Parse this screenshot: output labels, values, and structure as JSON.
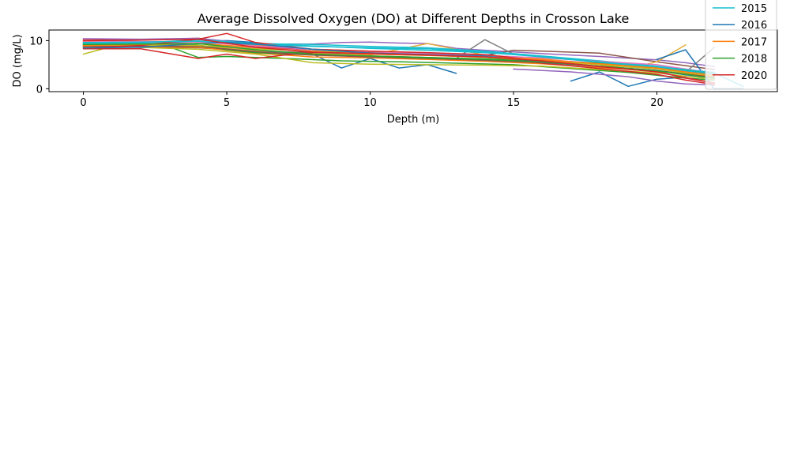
{
  "chart_data": {
    "type": "line",
    "title": "Average Dissolved Oxygen (DO) at Different Depths in Crosson Lake",
    "xlabel": "Depth (m)",
    "ylabel": "DO (mg/L)",
    "xlim": [
      -1.2,
      24.2
    ],
    "ylim": [
      -0.6,
      12.2
    ],
    "xticks": [
      0,
      5,
      10,
      15,
      20
    ],
    "yticks": [
      0,
      10
    ],
    "legend_position": "top-right",
    "series": [
      {
        "name": "",
        "color": "#1f77b4",
        "x": [
          0,
          2,
          4,
          5,
          6,
          7,
          8,
          9,
          10,
          11,
          12,
          13
        ],
        "y": [
          9.1,
          9.2,
          9.8,
          10.0,
          9.6,
          8.5,
          7.2,
          4.3,
          6.3,
          4.3,
          5.0,
          3.2
        ]
      },
      {
        "name": "",
        "color": "#1f77b4",
        "x": [
          17,
          18,
          19,
          20,
          21
        ],
        "y": [
          1.6,
          3.5,
          0.5,
          2.0,
          2.4
        ]
      },
      {
        "name": "",
        "color": "#ff7f0e",
        "x": [
          0,
          2,
          4,
          6,
          8,
          10,
          12,
          14,
          16,
          18,
          20,
          21,
          22
        ],
        "y": [
          9.8,
          10.1,
          10.5,
          9.0,
          8.2,
          7.8,
          7.4,
          7.0,
          6.2,
          5.1,
          4.2,
          3.5,
          2.9
        ]
      },
      {
        "name": "",
        "color": "#2ca02c",
        "x": [
          0,
          2,
          3,
          4,
          5,
          7,
          9,
          11,
          13,
          15,
          17,
          19,
          21,
          22
        ],
        "y": [
          9.3,
          9.0,
          8.7,
          6.5,
          6.7,
          6.3,
          5.8,
          5.6,
          5.3,
          5.0,
          4.2,
          3.4,
          2.2,
          1.8
        ]
      },
      {
        "name": "",
        "color": "#d62728",
        "x": [
          0,
          2,
          4,
          6,
          8,
          10,
          12,
          14,
          16,
          18,
          20,
          21,
          22
        ],
        "y": [
          10.3,
          10.2,
          10.4,
          8.8,
          7.9,
          7.5,
          7.2,
          6.8,
          5.9,
          4.6,
          3.6,
          2.2,
          1.2
        ]
      },
      {
        "name": "",
        "color": "#9467bd",
        "x": [
          0,
          2,
          4,
          6,
          8,
          9,
          10,
          11,
          12,
          13,
          14,
          16,
          18,
          20,
          21,
          22
        ],
        "y": [
          10.4,
          10.3,
          10.5,
          9.3,
          9.3,
          9.6,
          9.7,
          9.5,
          9.4,
          8.4,
          8.0,
          7.3,
          6.7,
          6.0,
          5.4,
          4.6
        ]
      },
      {
        "name": "",
        "color": "#9467bd",
        "x": [
          15,
          17,
          19,
          20,
          21,
          22
        ],
        "y": [
          4.1,
          3.5,
          2.5,
          1.6,
          1.0,
          0.8
        ]
      },
      {
        "name": "",
        "color": "#8c564b",
        "x": [
          0,
          2,
          4,
          6,
          8,
          10,
          12,
          14,
          15,
          16,
          18,
          19,
          20,
          21,
          22
        ],
        "y": [
          8.8,
          8.6,
          8.5,
          7.8,
          7.5,
          7.2,
          7.0,
          6.9,
          8.0,
          7.8,
          7.4,
          6.5,
          5.6,
          4.8,
          4.0
        ]
      },
      {
        "name": "",
        "color": "#e377c2",
        "x": [
          0,
          2,
          4,
          6,
          8,
          10,
          12,
          14,
          16,
          18,
          20,
          21,
          22
        ],
        "y": [
          9.6,
          9.5,
          9.4,
          8.5,
          7.9,
          7.5,
          7.0,
          6.5,
          6.0,
          5.3,
          4.6,
          3.9,
          3.2
        ]
      },
      {
        "name": "",
        "color": "#7f7f7f",
        "x": [
          0,
          2,
          4,
          6,
          8,
          10,
          12,
          13,
          14,
          15,
          17,
          19,
          20,
          21,
          22
        ],
        "y": [
          9.0,
          8.9,
          8.8,
          7.8,
          7.2,
          6.8,
          6.5,
          6.3,
          10.2,
          7.2,
          6.2,
          5.2,
          4.5,
          3.4,
          8.6
        ]
      },
      {
        "name": "",
        "color": "#bcbd22",
        "x": [
          0,
          1,
          3,
          4,
          6,
          8,
          10,
          12,
          14,
          16,
          18,
          20,
          21,
          22
        ],
        "y": [
          7.2,
          8.8,
          8.4,
          8.2,
          7.2,
          5.4,
          5.1,
          5.0,
          4.9,
          4.7,
          4.0,
          3.3,
          2.6,
          2.0
        ]
      },
      {
        "name": "",
        "color": "#e5ae38",
        "x": [
          0,
          2,
          4,
          6,
          7,
          8,
          10,
          12,
          14,
          16,
          18,
          19,
          20,
          21
        ],
        "y": [
          9.2,
          9.1,
          9.0,
          8.0,
          7.0,
          7.3,
          7.0,
          9.4,
          7.0,
          6.0,
          5.0,
          4.2,
          5.6,
          9.1
        ]
      },
      {
        "name": "",
        "color": "#17becf",
        "x": [
          0,
          2,
          4,
          6,
          8,
          10,
          12,
          14,
          16,
          18,
          20,
          21,
          22
        ],
        "y": [
          9.4,
          9.5,
          10.2,
          9.4,
          9.2,
          8.8,
          8.5,
          7.8,
          6.8,
          5.8,
          4.7,
          4.0,
          3.4
        ]
      },
      {
        "name": "",
        "color": "#ff7f0e",
        "x": [
          0,
          2,
          4,
          6,
          8,
          10,
          12,
          14,
          16,
          18,
          20,
          21,
          22
        ],
        "y": [
          8.6,
          8.7,
          8.6,
          7.4,
          6.6,
          6.4,
          6.1,
          5.7,
          5.2,
          4.4,
          3.6,
          3.0,
          2.5
        ]
      },
      {
        "name": "",
        "color": "#1f77b4",
        "x": [
          20,
          21,
          22,
          23
        ],
        "y": [
          6.1,
          8.1,
          0.0,
          0.0
        ]
      },
      {
        "name": "",
        "color": "#2ca02c",
        "x": [
          0,
          2,
          4,
          5,
          6,
          8,
          10,
          12,
          14,
          16,
          18,
          20,
          21,
          22
        ],
        "y": [
          9.0,
          9.2,
          9.1,
          8.1,
          7.5,
          7.0,
          6.8,
          6.5,
          6.2,
          5.8,
          5.3,
          4.5,
          3.8,
          3.1
        ]
      },
      {
        "name": "",
        "color": "#d62728",
        "x": [
          0,
          2,
          4,
          5,
          6,
          7,
          8,
          9,
          10,
          12,
          14,
          16,
          18,
          20,
          21,
          22
        ],
        "y": [
          8.3,
          8.3,
          6.3,
          7.2,
          6.3,
          7.0,
          7.5,
          7.8,
          7.6,
          7.2,
          6.8,
          5.3,
          4.2,
          3.0,
          1.8,
          0.9
        ]
      },
      {
        "name": "",
        "color": "#e377c2",
        "x": [
          0,
          2,
          4,
          6,
          8,
          10,
          12,
          14,
          16,
          18,
          20,
          21,
          22
        ],
        "y": [
          9.9,
          9.8,
          9.7,
          8.9,
          8.2,
          7.7,
          7.3,
          6.9,
          6.4,
          5.7,
          5.0,
          4.1,
          3.3
        ]
      },
      {
        "name": "",
        "color": "#8c564b",
        "x": [
          0,
          2,
          4,
          6,
          8,
          10,
          12,
          14,
          16,
          18,
          20,
          21,
          22
        ],
        "y": [
          8.9,
          8.8,
          8.8,
          7.7,
          7.0,
          6.6,
          6.3,
          5.9,
          5.4,
          4.7,
          3.8,
          3.1,
          2.4
        ]
      },
      {
        "name": "",
        "color": "#17becf",
        "x": [
          0,
          2,
          4,
          6,
          8,
          10,
          12,
          14,
          16,
          18,
          20,
          21,
          22,
          23
        ],
        "y": [
          9.4,
          9.6,
          9.9,
          9.3,
          8.9,
          8.4,
          8.0,
          7.5,
          6.7,
          5.6,
          4.5,
          4.0,
          3.3,
          0.5
        ]
      },
      {
        "name": "",
        "color": "#bcbd22",
        "x": [
          0,
          2,
          4,
          6,
          8,
          10,
          12,
          14,
          16,
          18,
          20,
          21,
          22
        ],
        "y": [
          9.0,
          9.1,
          9.0,
          8.3,
          7.8,
          7.4,
          7.0,
          6.5,
          5.8,
          5.0,
          4.1,
          3.3,
          2.6
        ]
      },
      {
        "name": "",
        "color": "#d62728",
        "x": [
          0,
          2,
          4,
          5,
          6,
          8,
          10,
          12,
          14,
          16,
          18,
          20,
          21,
          22
        ],
        "y": [
          8.5,
          9.0,
          10.3,
          11.5,
          9.6,
          8.2,
          7.8,
          7.5,
          7.1,
          5.8,
          4.6,
          3.7,
          3.0,
          2.4
        ]
      },
      {
        "name": "2015",
        "color": "#17becf",
        "x": [
          0,
          2,
          4,
          6,
          8,
          10,
          12,
          14,
          16,
          18,
          20,
          21,
          22
        ],
        "y": [
          9.6,
          9.7,
          9.9,
          9.2,
          8.8,
          8.5,
          8.3,
          7.6,
          6.6,
          5.5,
          4.4,
          3.7,
          3.0
        ]
      },
      {
        "name": "2016",
        "color": "#1f77b4",
        "x": [
          0,
          2,
          4,
          5,
          6,
          8,
          10,
          12,
          14,
          16,
          18,
          20,
          21,
          22
        ],
        "y": [
          8.5,
          8.6,
          9.4,
          9.6,
          9.3,
          8.2,
          7.4,
          7.1,
          6.8,
          5.6,
          4.6,
          3.8,
          2.9,
          2.2
        ]
      },
      {
        "name": "2017",
        "color": "#ff7f0e",
        "x": [
          0,
          2,
          4,
          6,
          8,
          10,
          12,
          14,
          16,
          18,
          20,
          21,
          22
        ],
        "y": [
          9.0,
          9.2,
          9.4,
          8.6,
          7.7,
          7.2,
          6.9,
          6.6,
          6.0,
          5.2,
          4.3,
          3.5,
          2.8
        ]
      },
      {
        "name": "2018",
        "color": "#2ca02c",
        "x": [
          0,
          2,
          4,
          6,
          8,
          10,
          12,
          14,
          16,
          18,
          20,
          21,
          22
        ],
        "y": [
          9.2,
          9.3,
          9.4,
          8.1,
          7.2,
          6.8,
          6.4,
          6.1,
          5.6,
          4.7,
          3.7,
          3.0,
          2.2
        ]
      },
      {
        "name": "2020",
        "color": "#d62728",
        "x": [
          0,
          2,
          4,
          6,
          8,
          10,
          12,
          14,
          16,
          18,
          20,
          21,
          22
        ],
        "y": [
          10.0,
          10.1,
          10.3,
          8.6,
          7.6,
          7.3,
          7.0,
          6.6,
          5.8,
          4.6,
          3.5,
          2.3,
          1.2
        ]
      }
    ]
  }
}
